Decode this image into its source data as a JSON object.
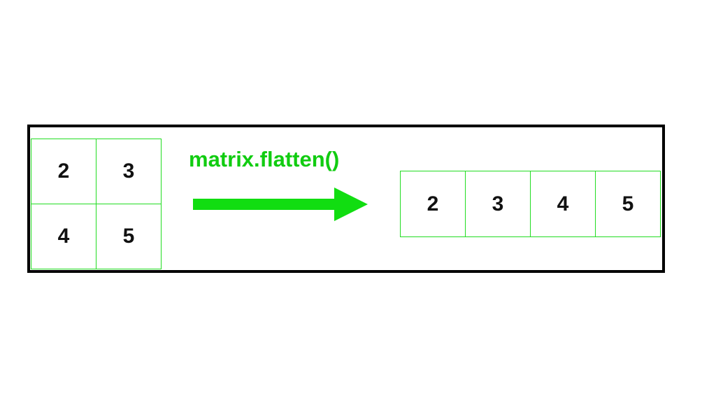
{
  "diagram": {
    "operation_label": "matrix.flatten()",
    "accent_color": "#22dd22",
    "matrix": {
      "rows": [
        [
          "2",
          "3"
        ],
        [
          "4",
          "5"
        ]
      ]
    },
    "flattened": [
      "2",
      "3",
      "4",
      "5"
    ],
    "arrow_icon": "right-arrow-icon"
  }
}
